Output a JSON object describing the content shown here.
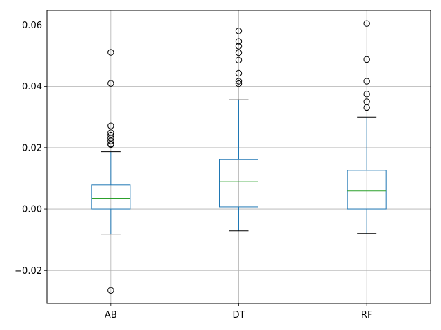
{
  "chart_data": {
    "type": "box",
    "title": "",
    "xlabel": "",
    "ylabel": "",
    "categories": [
      "AB",
      "DT",
      "RF"
    ],
    "ylim": [
      -0.0307,
      0.0648
    ],
    "yticks": [
      -0.02,
      0.0,
      0.02,
      0.04,
      0.06
    ],
    "ytick_labels": [
      "−0.02",
      "0.00",
      "0.02",
      "0.04",
      "0.06"
    ],
    "grid": true,
    "legend": "none",
    "colors": {
      "box": "#1f77b4",
      "median": "#2ca02c",
      "whisker_cap": "#000000",
      "grid": "#b0b0b0"
    },
    "boxes": [
      {
        "name": "AB",
        "whisker_low": -0.0082,
        "q1": 0.0,
        "median": 0.0035,
        "q3": 0.0079,
        "whisker_high": 0.0187,
        "outliers": [
          0.0511,
          0.041,
          0.0271,
          0.0249,
          0.0241,
          0.0231,
          0.0222,
          0.0212,
          0.021,
          -0.0265
        ]
      },
      {
        "name": "DT",
        "whisker_low": -0.0071,
        "q1": 0.0007,
        "median": 0.009,
        "q3": 0.0161,
        "whisker_high": 0.0356,
        "outliers": [
          0.0581,
          0.0547,
          0.0531,
          0.051,
          0.0486,
          0.0443,
          0.0417,
          0.0409
        ]
      },
      {
        "name": "RF",
        "whisker_low": -0.008,
        "q1": 0.0,
        "median": 0.0059,
        "q3": 0.0126,
        "whisker_high": 0.03,
        "outliers": [
          0.0605,
          0.0488,
          0.0417,
          0.0375,
          0.035,
          0.0331
        ]
      }
    ]
  }
}
